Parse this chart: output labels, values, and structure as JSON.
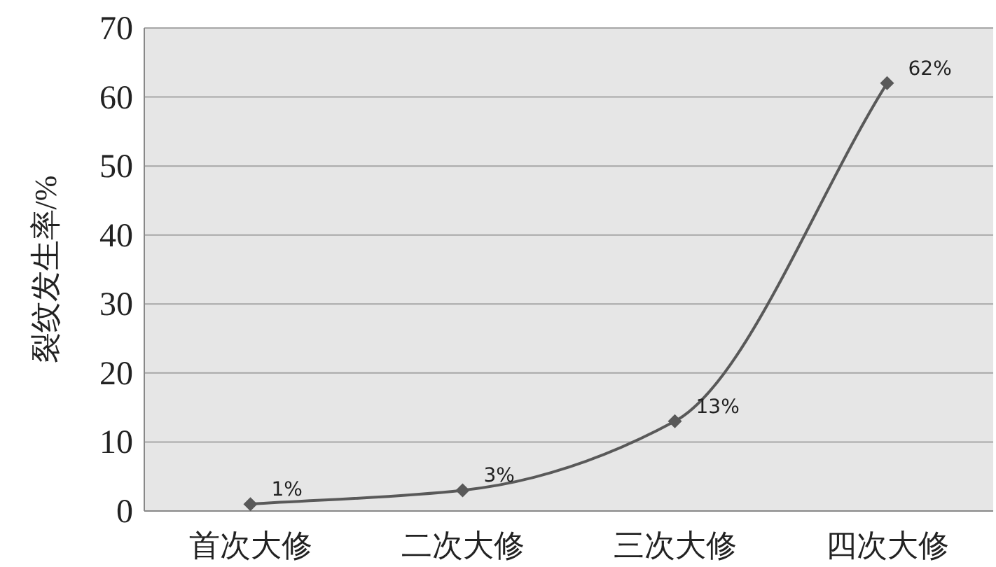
{
  "chart_data": {
    "type": "line",
    "ylabel": "裂纹发生率/%",
    "categories": [
      "首次大修",
      "二次大修",
      "三次大修",
      "四次大修"
    ],
    "series": [
      {
        "color": "#595959",
        "values": [
          1,
          3,
          13,
          62
        ],
        "value_labels": [
          "1%",
          "3%",
          "13%",
          "62%"
        ]
      }
    ],
    "ylim": [
      0,
      70
    ],
    "yticks": [
      0,
      10,
      20,
      30,
      40,
      50,
      60,
      70
    ],
    "grid": "y",
    "marker": "diamond",
    "line_style": "solid"
  }
}
